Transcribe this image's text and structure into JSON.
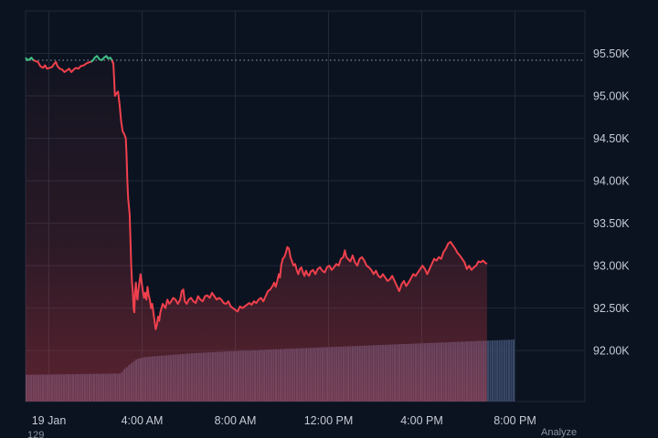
{
  "chart_data": {
    "type": "line",
    "title": "",
    "xlabel": "",
    "ylabel": "",
    "ylim": [
      91400,
      96000
    ],
    "y_ticks": [
      {
        "value": 95500,
        "label": "95.50K"
      },
      {
        "value": 95000,
        "label": "95.00K"
      },
      {
        "value": 94500,
        "label": "94.50K"
      },
      {
        "value": 94000,
        "label": "94.00K"
      },
      {
        "value": 93500,
        "label": "93.50K"
      },
      {
        "value": 93000,
        "label": "93.00K"
      },
      {
        "value": 92500,
        "label": "92.50K"
      },
      {
        "value": 92000,
        "label": "92.00K"
      }
    ],
    "x_range": [
      0,
      1440
    ],
    "x_ticks": [
      {
        "value": 60,
        "label": "19 Jan"
      },
      {
        "value": 300,
        "label": "4:00 AM"
      },
      {
        "value": 540,
        "label": "8:00 AM"
      },
      {
        "value": 780,
        "label": "12:00 PM"
      },
      {
        "value": 1020,
        "label": "4:00 PM"
      },
      {
        "value": 1260,
        "label": "8:00 PM"
      }
    ],
    "reference_line": 95420,
    "grid": true,
    "colors": {
      "up": "#3fbf86",
      "down": "#f0404d",
      "grid": "#1f2a3a",
      "volume": "#3a4868",
      "reference": "#9aa3b2"
    },
    "series": [
      {
        "points": [
          [
            0,
            95450
          ],
          [
            5,
            95420
          ],
          [
            10,
            95430
          ],
          [
            15,
            95450
          ],
          [
            20,
            95420
          ],
          [
            25,
            95410
          ],
          [
            32,
            95400
          ],
          [
            38,
            95350
          ],
          [
            45,
            95330
          ],
          [
            50,
            95360
          ],
          [
            55,
            95320
          ],
          [
            62,
            95330
          ],
          [
            68,
            95340
          ],
          [
            74,
            95380
          ],
          [
            78,
            95400
          ],
          [
            82,
            95350
          ],
          [
            88,
            95320
          ],
          [
            94,
            95310
          ],
          [
            100,
            95280
          ],
          [
            106,
            95300
          ],
          [
            112,
            95320
          ],
          [
            118,
            95280
          ],
          [
            124,
            95310
          ],
          [
            130,
            95330
          ],
          [
            136,
            95320
          ],
          [
            142,
            95350
          ],
          [
            150,
            95360
          ],
          [
            156,
            95380
          ],
          [
            160,
            95390
          ],
          [
            168,
            95400
          ],
          [
            174,
            95420
          ],
          [
            178,
            95450
          ],
          [
            184,
            95470
          ],
          [
            190,
            95430
          ],
          [
            196,
            95420
          ],
          [
            202,
            95450
          ],
          [
            208,
            95470
          ],
          [
            212,
            95440
          ],
          [
            218,
            95450
          ],
          [
            222,
            95420
          ],
          [
            226,
            95380
          ],
          [
            228,
            95200
          ],
          [
            230,
            95000
          ],
          [
            234,
            95030
          ],
          [
            238,
            95050
          ],
          [
            242,
            94900
          ],
          [
            246,
            94700
          ],
          [
            250,
            94580
          ],
          [
            254,
            94550
          ],
          [
            258,
            94500
          ],
          [
            260,
            94300
          ],
          [
            262,
            94000
          ],
          [
            264,
            93800
          ],
          [
            266,
            93700
          ],
          [
            268,
            93600
          ],
          [
            270,
            93300
          ],
          [
            272,
            93000
          ],
          [
            274,
            92800
          ],
          [
            276,
            92700
          ],
          [
            278,
            92500
          ],
          [
            280,
            92450
          ],
          [
            282,
            92700
          ],
          [
            284,
            92800
          ],
          [
            286,
            92650
          ],
          [
            288,
            92600
          ],
          [
            290,
            92700
          ],
          [
            293,
            92800
          ],
          [
            296,
            92900
          ],
          [
            299,
            92800
          ],
          [
            302,
            92700
          ],
          [
            305,
            92620
          ],
          [
            308,
            92680
          ],
          [
            311,
            92600
          ],
          [
            314,
            92750
          ],
          [
            317,
            92650
          ],
          [
            320,
            92600
          ],
          [
            323,
            92500
          ],
          [
            326,
            92550
          ],
          [
            329,
            92450
          ],
          [
            332,
            92350
          ],
          [
            335,
            92250
          ],
          [
            338,
            92300
          ],
          [
            341,
            92400
          ],
          [
            344,
            92350
          ],
          [
            347,
            92450
          ],
          [
            350,
            92500
          ],
          [
            353,
            92550
          ],
          [
            356,
            92530
          ],
          [
            360,
            92500
          ],
          [
            365,
            92600
          ],
          [
            370,
            92550
          ],
          [
            375,
            92580
          ],
          [
            380,
            92620
          ],
          [
            386,
            92600
          ],
          [
            392,
            92550
          ],
          [
            398,
            92600
          ],
          [
            402,
            92700
          ],
          [
            406,
            92720
          ],
          [
            410,
            92580
          ],
          [
            415,
            92550
          ],
          [
            420,
            92600
          ],
          [
            426,
            92620
          ],
          [
            432,
            92580
          ],
          [
            438,
            92560
          ],
          [
            444,
            92640
          ],
          [
            450,
            92600
          ],
          [
            456,
            92580
          ],
          [
            462,
            92640
          ],
          [
            468,
            92650
          ],
          [
            474,
            92620
          ],
          [
            480,
            92680
          ],
          [
            486,
            92640
          ],
          [
            492,
            92600
          ],
          [
            498,
            92620
          ],
          [
            504,
            92600
          ],
          [
            510,
            92560
          ],
          [
            516,
            92550
          ],
          [
            522,
            92580
          ],
          [
            528,
            92520
          ],
          [
            534,
            92500
          ],
          [
            540,
            92480
          ],
          [
            546,
            92460
          ],
          [
            552,
            92520
          ],
          [
            558,
            92500
          ],
          [
            564,
            92520
          ],
          [
            570,
            92540
          ],
          [
            576,
            92560
          ],
          [
            582,
            92540
          ],
          [
            588,
            92580
          ],
          [
            594,
            92560
          ],
          [
            600,
            92600
          ],
          [
            606,
            92620
          ],
          [
            612,
            92580
          ],
          [
            618,
            92640
          ],
          [
            624,
            92700
          ],
          [
            630,
            92720
          ],
          [
            636,
            92760
          ],
          [
            640,
            92800
          ],
          [
            644,
            92750
          ],
          [
            648,
            92820
          ],
          [
            652,
            92900
          ],
          [
            655,
            92860
          ],
          [
            658,
            93000
          ],
          [
            662,
            93080
          ],
          [
            666,
            93100
          ],
          [
            670,
            93150
          ],
          [
            674,
            93220
          ],
          [
            678,
            93200
          ],
          [
            682,
            93100
          ],
          [
            686,
            93050
          ],
          [
            690,
            93000
          ],
          [
            694,
            93020
          ],
          [
            698,
            92950
          ],
          [
            702,
            92900
          ],
          [
            706,
            92960
          ],
          [
            710,
            92980
          ],
          [
            714,
            92920
          ],
          [
            718,
            92880
          ],
          [
            722,
            92940
          ],
          [
            726,
            92900
          ],
          [
            730,
            92880
          ],
          [
            734,
            92930
          ],
          [
            740,
            92950
          ],
          [
            746,
            92900
          ],
          [
            752,
            92960
          ],
          [
            758,
            92980
          ],
          [
            764,
            92940
          ],
          [
            770,
            92920
          ],
          [
            776,
            92980
          ],
          [
            782,
            93000
          ],
          [
            788,
            92950
          ],
          [
            794,
            92980
          ],
          [
            800,
            93020
          ],
          [
            806,
            93000
          ],
          [
            812,
            93080
          ],
          [
            818,
            93100
          ],
          [
            822,
            93180
          ],
          [
            826,
            93100
          ],
          [
            830,
            93080
          ],
          [
            836,
            93050
          ],
          [
            842,
            93120
          ],
          [
            848,
            93040
          ],
          [
            854,
            93000
          ],
          [
            860,
            93080
          ],
          [
            866,
            93100
          ],
          [
            872,
            93060
          ],
          [
            878,
            93000
          ],
          [
            884,
            92980
          ],
          [
            890,
            92950
          ],
          [
            896,
            92900
          ],
          [
            902,
            92940
          ],
          [
            908,
            92880
          ],
          [
            914,
            92860
          ],
          [
            920,
            92900
          ],
          [
            926,
            92860
          ],
          [
            932,
            92820
          ],
          [
            938,
            92840
          ],
          [
            944,
            92880
          ],
          [
            950,
            92820
          ],
          [
            956,
            92760
          ],
          [
            962,
            92700
          ],
          [
            968,
            92780
          ],
          [
            974,
            92820
          ],
          [
            980,
            92760
          ],
          [
            986,
            92800
          ],
          [
            992,
            92850
          ],
          [
            998,
            92900
          ],
          [
            1004,
            92880
          ],
          [
            1010,
            92920
          ],
          [
            1016,
            92960
          ],
          [
            1022,
            93000
          ],
          [
            1028,
            92960
          ],
          [
            1034,
            92900
          ],
          [
            1040,
            92960
          ],
          [
            1046,
            93020
          ],
          [
            1052,
            93080
          ],
          [
            1058,
            93060
          ],
          [
            1064,
            93100
          ],
          [
            1070,
            93080
          ],
          [
            1076,
            93160
          ],
          [
            1082,
            93200
          ],
          [
            1088,
            93260
          ],
          [
            1094,
            93280
          ],
          [
            1100,
            93240
          ],
          [
            1106,
            93200
          ],
          [
            1112,
            93150
          ],
          [
            1118,
            93120
          ],
          [
            1124,
            93080
          ],
          [
            1130,
            93040
          ],
          [
            1136,
            92960
          ],
          [
            1142,
            93000
          ],
          [
            1148,
            92950
          ],
          [
            1154,
            92980
          ],
          [
            1160,
            93000
          ],
          [
            1166,
            93050
          ],
          [
            1172,
            93040
          ],
          [
            1178,
            93060
          ],
          [
            1182,
            93040
          ],
          [
            1188,
            93020
          ]
        ]
      }
    ],
    "volume": {
      "start_x": 0,
      "step": 6,
      "values": [
        280,
        280,
        280,
        281,
        281,
        281,
        282,
        282,
        282,
        283,
        283,
        283,
        284,
        284,
        284,
        285,
        285,
        285,
        286,
        286,
        286,
        287,
        287,
        287,
        288,
        288,
        288,
        289,
        289,
        289,
        290,
        290,
        290,
        291,
        291,
        291,
        292,
        292,
        292,
        293,
        293,
        310,
        340,
        360,
        380,
        400,
        420,
        440,
        450,
        455,
        460,
        465,
        468,
        470,
        472,
        474,
        476,
        478,
        480,
        482,
        484,
        486,
        488,
        490,
        492,
        494,
        496,
        498,
        500,
        502,
        503,
        505,
        506,
        508,
        509,
        510,
        512,
        513,
        514,
        516,
        517,
        518,
        520,
        521,
        522,
        523,
        524,
        525,
        526,
        527,
        528,
        529,
        530,
        531,
        532,
        533,
        534,
        535,
        536,
        537,
        540,
        541,
        542,
        543,
        544,
        545,
        546,
        547,
        548,
        549,
        550,
        551,
        552,
        553,
        554,
        555,
        556,
        557,
        558,
        559,
        560,
        561,
        562,
        563,
        564,
        565,
        566,
        567,
        568,
        569,
        570,
        571,
        572,
        573,
        574,
        575,
        576,
        577,
        578,
        579,
        580,
        581,
        582,
        583,
        584,
        585,
        586,
        587,
        588,
        589,
        590,
        591,
        592,
        593,
        594,
        595,
        596,
        597,
        598,
        599,
        600,
        601,
        602,
        603,
        604,
        605,
        606,
        607,
        608,
        609,
        610,
        611,
        612,
        613,
        614,
        615,
        616,
        617,
        618,
        619,
        620,
        621,
        622,
        623,
        624,
        625,
        626,
        627,
        628,
        629,
        630,
        631,
        632,
        633,
        634,
        635,
        636,
        637,
        638,
        639,
        640,
        641,
        642,
        643,
        644,
        645,
        646,
        647,
        648,
        650
      ],
      "max": 650
    },
    "footer_left": "129",
    "footer_right": "Analyze"
  }
}
